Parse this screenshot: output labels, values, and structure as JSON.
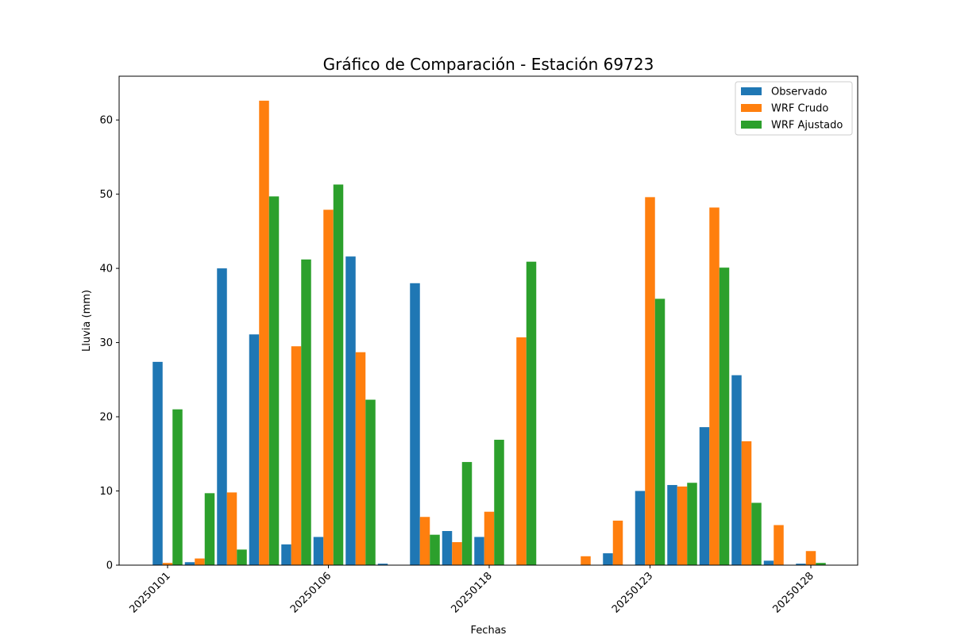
{
  "chart_data": {
    "type": "bar",
    "title": "Gráfico de Comparación - Estación 69723",
    "xlabel": "Fechas",
    "ylabel": "Lluvia (mm)",
    "ylim": [
      0,
      65.9
    ],
    "yticks": [
      0,
      10,
      20,
      30,
      40,
      50,
      60
    ],
    "xtick_labels": [
      "20250101",
      "20250106",
      "20250118",
      "20250123",
      "20250128"
    ],
    "xtick_positions": [
      0,
      5,
      10,
      15,
      20
    ],
    "legend_position": "top-right",
    "grid": false,
    "series": [
      {
        "name": "Observado",
        "color": "#1f77b4",
        "values": [
          27.4,
          0.4,
          40.0,
          31.1,
          2.8,
          3.8,
          41.6,
          0.2,
          38.0,
          4.6,
          3.8,
          0.0,
          0.0,
          0.0,
          1.6,
          10.0,
          10.8,
          18.6,
          25.6,
          0.6,
          0.2
        ]
      },
      {
        "name": "WRF Crudo",
        "color": "#ff7f0e",
        "values": [
          0.3,
          0.9,
          9.8,
          62.6,
          29.5,
          47.9,
          28.7,
          0.0,
          6.5,
          3.1,
          7.2,
          30.7,
          0.0,
          1.2,
          6.0,
          49.6,
          10.6,
          48.2,
          16.7,
          5.4,
          1.9
        ]
      },
      {
        "name": "WRF Ajustado",
        "color": "#2ca02c",
        "values": [
          21.0,
          9.7,
          2.1,
          49.7,
          41.2,
          51.3,
          22.3,
          0.0,
          4.1,
          13.9,
          16.9,
          40.9,
          0.0,
          0.0,
          0.0,
          35.9,
          11.1,
          40.1,
          8.4,
          0.0,
          0.3
        ]
      }
    ]
  }
}
